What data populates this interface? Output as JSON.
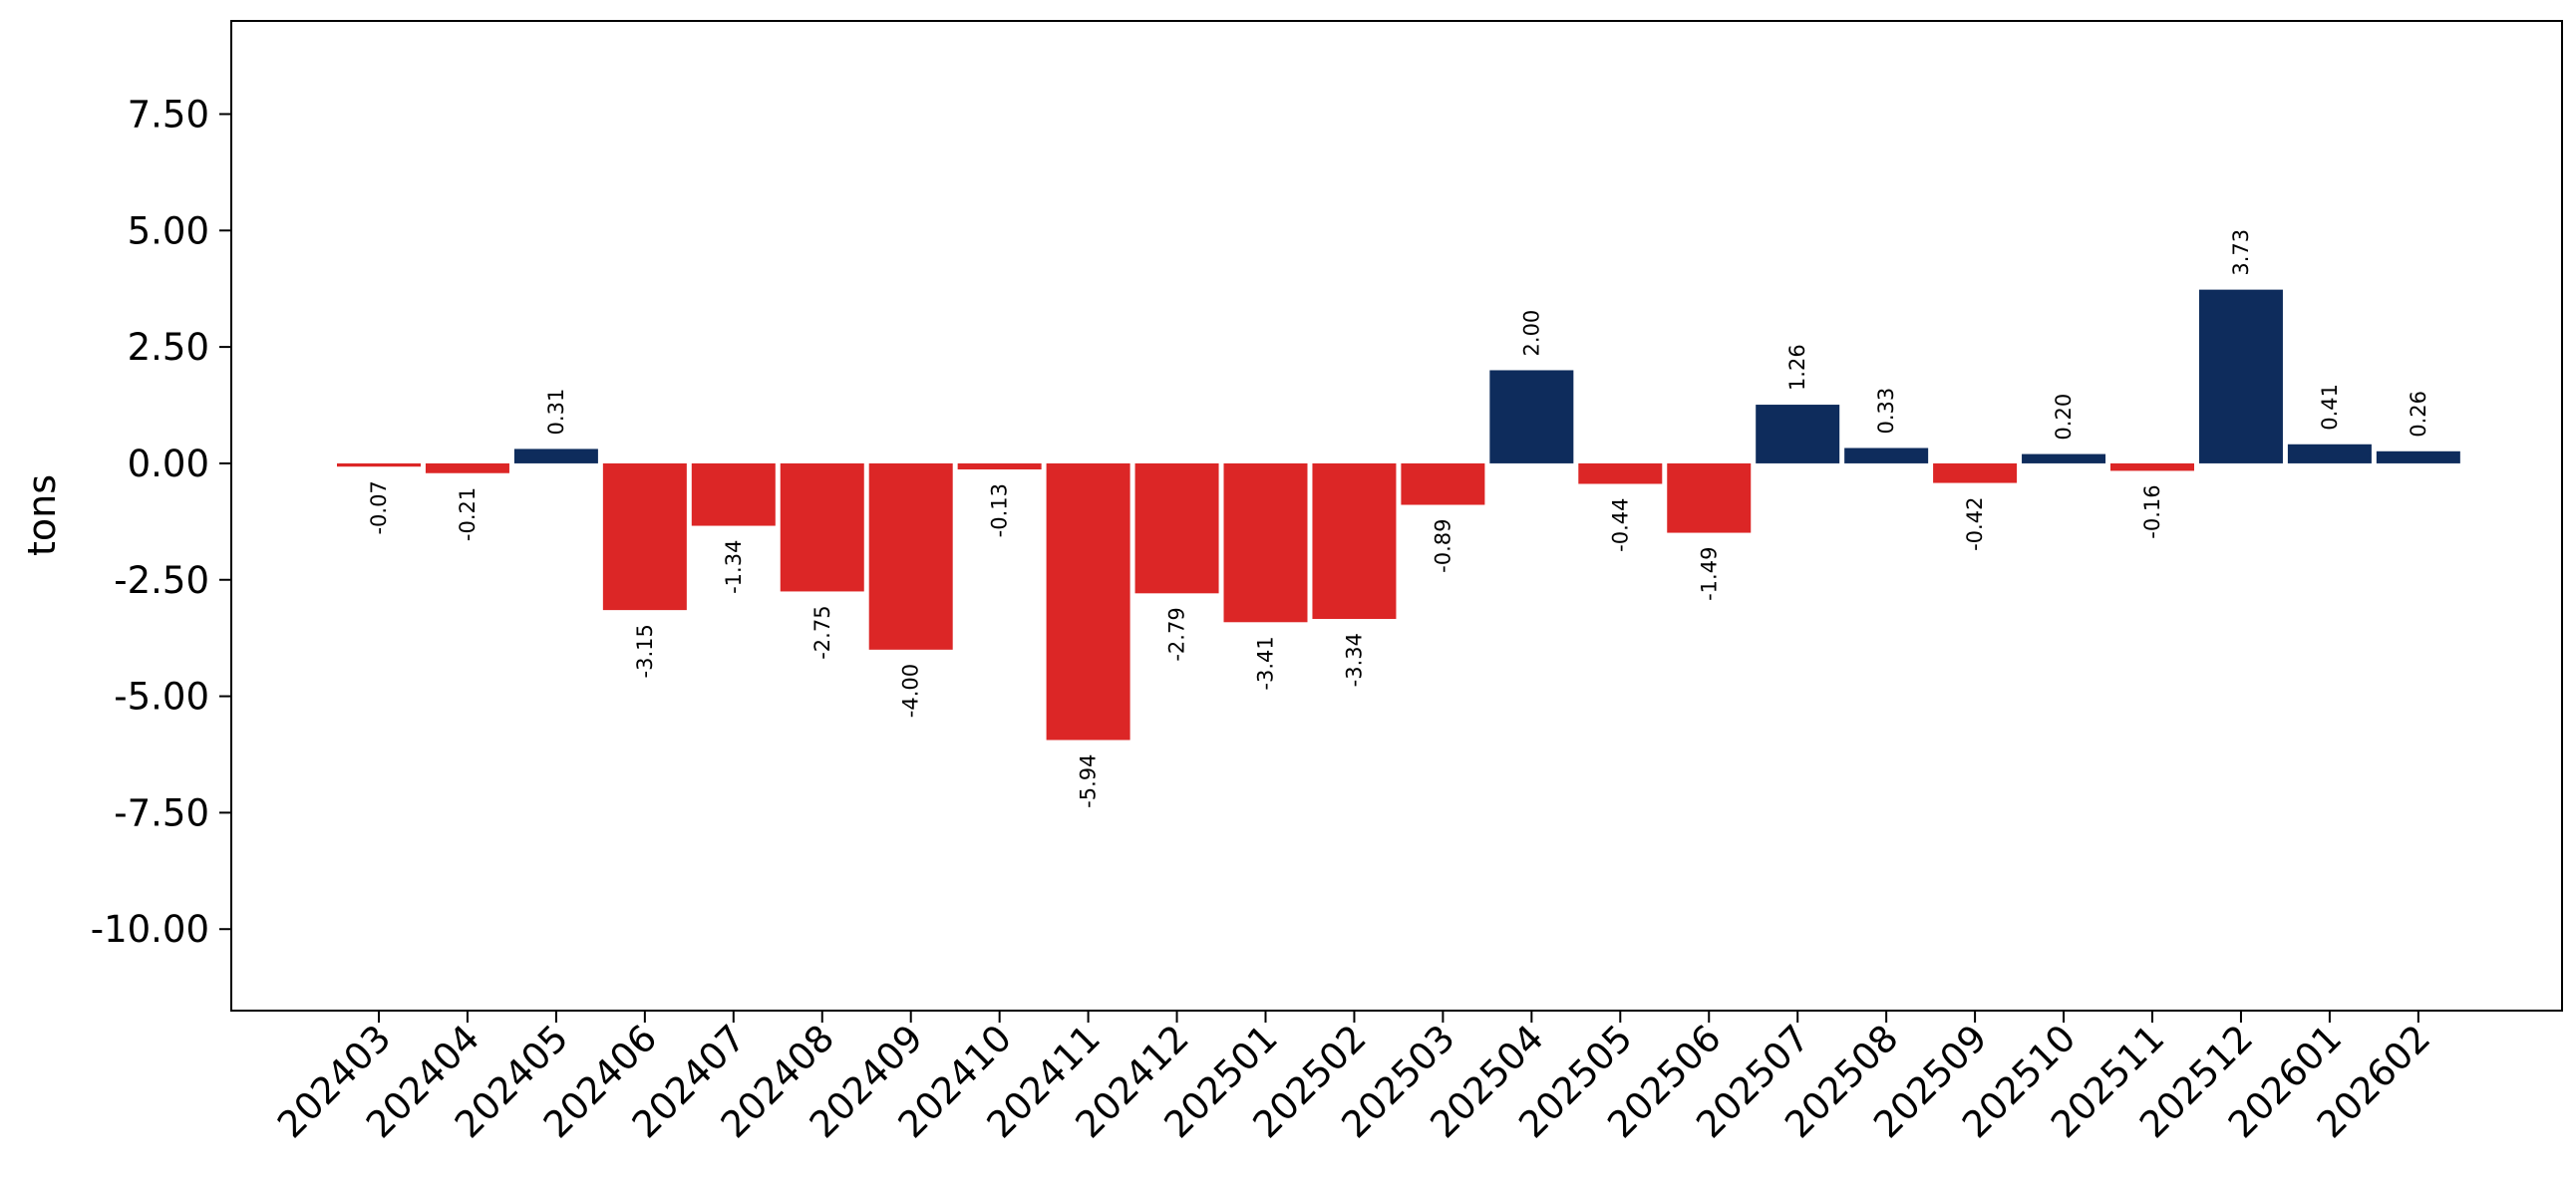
{
  "chart_data": {
    "type": "bar",
    "title": "",
    "xlabel": "",
    "ylabel": "tons",
    "ylim": [
      -11.75,
      9.5
    ],
    "yticks": [
      -10.0,
      -7.5,
      -5.0,
      -2.5,
      0.0,
      2.5,
      5.0,
      7.5
    ],
    "ytick_labels": [
      "-10.00",
      "-7.50",
      "-5.00",
      "-2.50",
      "0.00",
      "2.50",
      "5.00",
      "7.50"
    ],
    "grid": false,
    "legend": "none",
    "colors": {
      "positive": "#0e2c5c",
      "negative": "#dc2626"
    },
    "categories": [
      "202403",
      "202404",
      "202405",
      "202406",
      "202407",
      "202408",
      "202409",
      "202410",
      "202411",
      "202412",
      "202501",
      "202502",
      "202503",
      "202504",
      "202505",
      "202506",
      "202507",
      "202508",
      "202509",
      "202510",
      "202511",
      "202512",
      "202601",
      "202602"
    ],
    "values": [
      -0.07,
      -0.21,
      0.31,
      -3.15,
      -1.34,
      -2.75,
      -4.0,
      -0.13,
      -5.94,
      -2.79,
      -3.41,
      -3.34,
      -0.89,
      2.0,
      -0.44,
      -1.49,
      1.26,
      0.33,
      -0.42,
      0.2,
      -0.16,
      3.73,
      0.41,
      0.26
    ],
    "value_labels": [
      "-0.07",
      "-0.21",
      "0.31",
      "-3.15",
      "-1.34",
      "-2.75",
      "-4.00",
      "-0.13",
      "-5.94",
      "-2.79",
      "-3.41",
      "-3.34",
      "-0.89",
      "2.00",
      "-0.44",
      "-1.49",
      "1.26",
      "0.33",
      "-0.42",
      "0.20",
      "-0.16",
      "3.73",
      "0.41",
      "0.26"
    ]
  }
}
